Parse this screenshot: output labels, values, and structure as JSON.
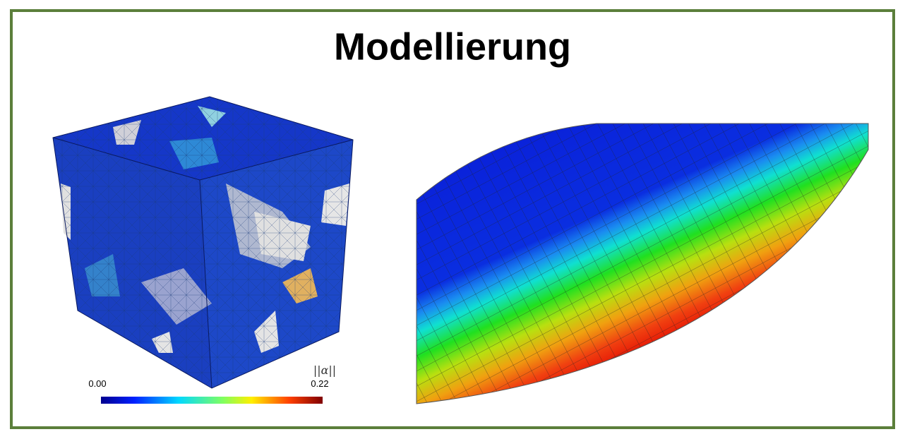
{
  "title": "Modellierung",
  "colorbar": {
    "label": "||α||",
    "min_label": "0.00",
    "max_label": "0.22"
  }
}
